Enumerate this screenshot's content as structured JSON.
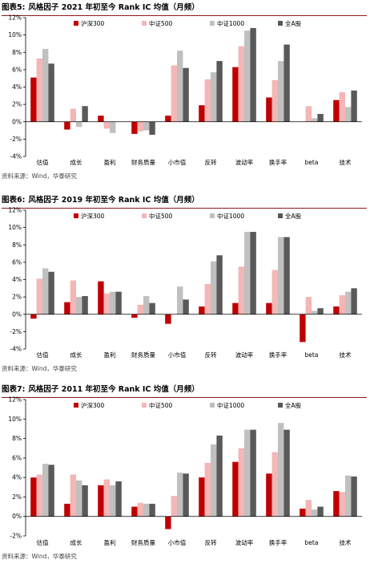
{
  "colors": {
    "hs300": "#c00000",
    "zz500": "#f4b6b6",
    "zz1000": "#c0c0c0",
    "all_a": "#595959",
    "title_rule": "#8b1a1a"
  },
  "chart_data": [
    {
      "type": "bar",
      "figure_label": "图表5:",
      "title": "风格因子 2021 年初至今 Rank IC 均值（月频）",
      "source": "资料来源：Wind，华泰研究",
      "categories": [
        "估值",
        "成长",
        "盈利",
        "财务质量",
        "小市值",
        "反转",
        "波动率",
        "换手率",
        "beta",
        "技术"
      ],
      "series": [
        {
          "name": "沪深300",
          "values": [
            5.1,
            -0.9,
            0.7,
            -1.4,
            0.7,
            1.9,
            6.3,
            2.8,
            0.0,
            2.5
          ]
        },
        {
          "name": "中证500",
          "values": [
            7.3,
            1.5,
            -0.8,
            -1.1,
            6.5,
            4.9,
            8.7,
            4.8,
            1.8,
            3.4
          ]
        },
        {
          "name": "中证1000",
          "values": [
            8.4,
            -0.6,
            -1.3,
            -1.0,
            8.2,
            5.7,
            10.5,
            7.0,
            0.4,
            1.7
          ]
        },
        {
          "name": "全A股",
          "values": [
            6.7,
            1.8,
            0.0,
            -1.5,
            6.2,
            7.0,
            10.8,
            8.9,
            0.9,
            3.6
          ]
        }
      ],
      "ylim": [
        -4,
        12
      ],
      "yticks": [
        "-4%",
        "-2%",
        "0%",
        "2%",
        "4%",
        "6%",
        "8%",
        "10%",
        "12%"
      ],
      "legend": "top"
    },
    {
      "type": "bar",
      "figure_label": "图表6:",
      "title": "风格因子 2019 年初至今 Rank IC 均值（月频）",
      "source": "资料来源：Wind，华泰研究",
      "categories": [
        "估值",
        "成长",
        "盈利",
        "财务质量",
        "小市值",
        "反转",
        "波动率",
        "换手率",
        "beta",
        "技术"
      ],
      "series": [
        {
          "name": "沪深300",
          "values": [
            -0.5,
            1.4,
            3.8,
            -0.4,
            -1.1,
            0.9,
            1.3,
            1.3,
            -3.2,
            0.9
          ]
        },
        {
          "name": "中证500",
          "values": [
            4.1,
            3.9,
            2.4,
            1.1,
            0.0,
            3.5,
            5.5,
            5.1,
            2.0,
            2.2
          ]
        },
        {
          "name": "中证1000",
          "values": [
            5.3,
            2.0,
            2.6,
            2.1,
            3.2,
            6.1,
            9.5,
            8.9,
            0.4,
            2.6
          ]
        },
        {
          "name": "全A股",
          "values": [
            4.9,
            2.1,
            2.6,
            1.3,
            1.7,
            6.8,
            9.5,
            8.9,
            0.7,
            3.0
          ]
        }
      ],
      "ylim": [
        -4,
        12
      ],
      "yticks": [
        "-4%",
        "-2%",
        "0%",
        "2%",
        "4%",
        "6%",
        "8%",
        "10%",
        "12%"
      ],
      "legend": "top"
    },
    {
      "type": "bar",
      "figure_label": "图表7:",
      "title": "风格因子 2011 年初至今 Rank IC 均值（月频）",
      "source": "资料来源：Wind，华泰研究",
      "categories": [
        "估值",
        "成长",
        "盈利",
        "财务质量",
        "小市值",
        "反转",
        "波动率",
        "换手率",
        "beta",
        "技术"
      ],
      "series": [
        {
          "name": "沪深300",
          "values": [
            4.0,
            1.3,
            3.2,
            1.0,
            -1.3,
            4.0,
            5.6,
            4.4,
            0.8,
            2.6
          ]
        },
        {
          "name": "中证500",
          "values": [
            4.3,
            4.3,
            3.8,
            1.4,
            2.1,
            5.5,
            7.0,
            6.6,
            1.7,
            2.5
          ]
        },
        {
          "name": "中证1000",
          "values": [
            5.4,
            3.7,
            3.2,
            1.3,
            4.5,
            7.4,
            8.9,
            9.6,
            0.7,
            4.2
          ]
        },
        {
          "name": "全A股",
          "values": [
            5.3,
            3.2,
            3.6,
            1.3,
            4.4,
            8.3,
            8.9,
            8.9,
            1.0,
            4.1
          ]
        }
      ],
      "ylim": [
        -2,
        12
      ],
      "yticks": [
        "-2%",
        "0%",
        "2%",
        "4%",
        "6%",
        "8%",
        "10%",
        "12%"
      ],
      "legend": "top"
    }
  ]
}
